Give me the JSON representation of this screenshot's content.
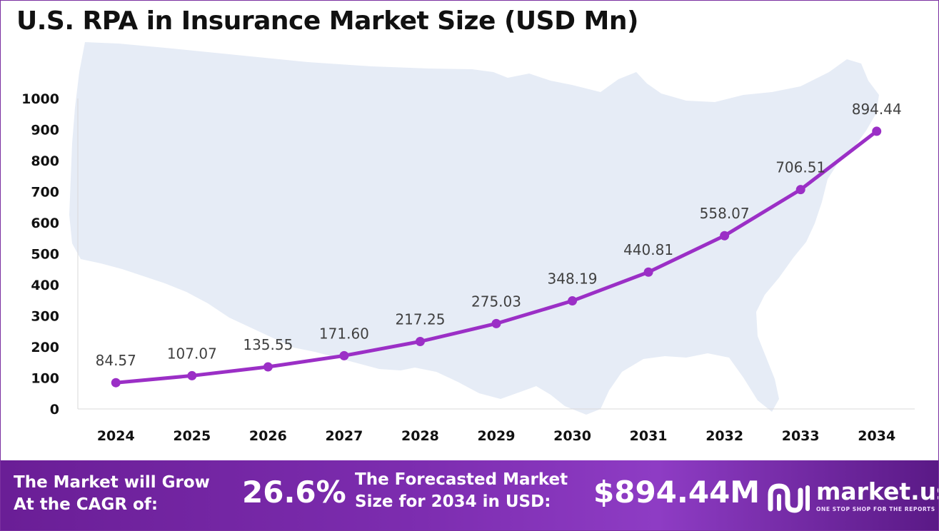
{
  "title": "U.S. RPA in Insurance Market Size (USD Mn)",
  "chart_data": {
    "type": "line",
    "title": "U.S. RPA in Insurance Market Size (USD Mn)",
    "categories": [
      "2024",
      "2025",
      "2026",
      "2027",
      "2028",
      "2029",
      "2030",
      "2031",
      "2032",
      "2033",
      "2034"
    ],
    "series": [
      {
        "values": [
          84.57,
          107.07,
          135.55,
          171.6,
          217.25,
          275.03,
          348.19,
          440.81,
          558.07,
          706.51,
          894.44
        ],
        "labels": [
          "84.57",
          "107.07",
          "135.55",
          "171.60",
          "217.25",
          "275.03",
          "348.19",
          "440.81",
          "558.07",
          "706.51",
          "894.44"
        ]
      }
    ],
    "yticks": [
      "0",
      "100",
      "200",
      "300",
      "400",
      "500",
      "600",
      "700",
      "800",
      "900",
      "1000"
    ],
    "ylim": [
      0,
      1000
    ],
    "xlabel": "",
    "ylabel": "",
    "grid": false,
    "line_color": "#9b2fc6",
    "background_watermark": "us-map"
  },
  "footer": {
    "cagr_text_line1": "The Market will Grow",
    "cagr_text_line2": "At the CAGR of:",
    "cagr_value": "26.6%",
    "forecast_text_line1": "The Forecasted Market",
    "forecast_text_line2": "Size for 2034 in USD:",
    "forecast_value": "$894.44M"
  },
  "brand": {
    "name": "market.us",
    "tagline": "ONE STOP SHOP FOR THE REPORTS",
    "icon": "market-us-logo-icon"
  },
  "colors": {
    "accent": "#9b2fc6",
    "frame": "#7b2fa0",
    "footer_start": "#6a1e96",
    "footer_end": "#5a1986",
    "map": "#e6ecf6"
  }
}
